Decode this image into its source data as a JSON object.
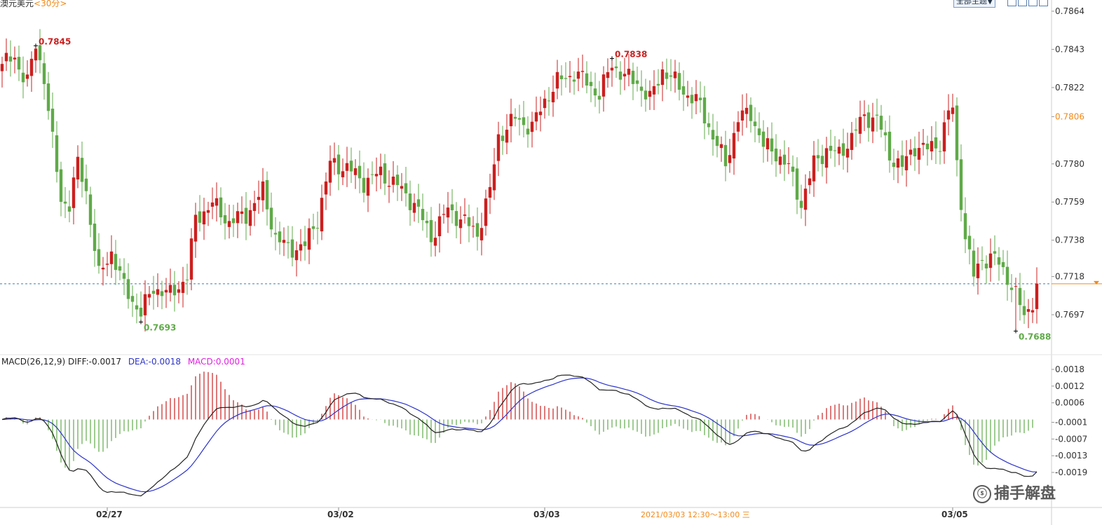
{
  "header": {
    "symbol": "澳元美元",
    "timeframe": "<30分>",
    "theme_button": "全部主题▼"
  },
  "colors": {
    "up": "#cc1f1f",
    "down": "#5faa48",
    "diff_line": "#222222",
    "dea_line": "#2c33c8",
    "macd_legend": "#e020e0",
    "current_price_line": "#3a7fb0",
    "current_price_tag": "#f08a1a"
  },
  "chart_data": [
    {
      "type": "candlestick",
      "y_ticks": [
        "0.7864",
        "0.7843",
        "0.7822",
        "0.7806",
        "0.7780",
        "0.7759",
        "0.7738",
        "0.7718",
        "0.7697"
      ],
      "highlight_tick": "0.7806",
      "ylim": [
        0.7675,
        0.7864
      ],
      "current_price": 0.7714,
      "annotations": [
        {
          "label": "0.7845",
          "price": 0.7845,
          "index": 8,
          "kind": "high"
        },
        {
          "label": "0.7693",
          "price": 0.7693,
          "index": 33,
          "kind": "low"
        },
        {
          "label": "0.7838",
          "price": 0.7838,
          "index": 145,
          "kind": "high"
        },
        {
          "label": "0.7688",
          "price": 0.7688,
          "index": 241,
          "kind": "low"
        }
      ],
      "x_ticks": [
        {
          "label": "02/27",
          "index": 25
        },
        {
          "label": "03/02",
          "index": 80
        },
        {
          "label": "03/03",
          "index": 129
        },
        {
          "label": "03/05",
          "index": 226
        }
      ],
      "cursor_time": "2021/03/03 12:30～13:00 三",
      "anchors": [
        [
          0,
          0.7835
        ],
        [
          3,
          0.7838
        ],
        [
          6,
          0.7825
        ],
        [
          8,
          0.7845
        ],
        [
          10,
          0.7828
        ],
        [
          12,
          0.7792
        ],
        [
          14,
          0.776
        ],
        [
          16,
          0.7758
        ],
        [
          18,
          0.778
        ],
        [
          20,
          0.7765
        ],
        [
          23,
          0.7718
        ],
        [
          26,
          0.7732
        ],
        [
          29,
          0.7712
        ],
        [
          33,
          0.7698
        ],
        [
          36,
          0.7712
        ],
        [
          40,
          0.7708
        ],
        [
          44,
          0.7718
        ],
        [
          46,
          0.775
        ],
        [
          50,
          0.7758
        ],
        [
          54,
          0.7748
        ],
        [
          58,
          0.7752
        ],
        [
          62,
          0.7765
        ],
        [
          65,
          0.774
        ],
        [
          68,
          0.7733
        ],
        [
          72,
          0.7735
        ],
        [
          75,
          0.775
        ],
        [
          78,
          0.778
        ],
        [
          82,
          0.7778
        ],
        [
          86,
          0.777
        ],
        [
          90,
          0.7775
        ],
        [
          94,
          0.7768
        ],
        [
          98,
          0.7758
        ],
        [
          102,
          0.774
        ],
        [
          106,
          0.7755
        ],
        [
          110,
          0.7748
        ],
        [
          113,
          0.7742
        ],
        [
          116,
          0.7765
        ],
        [
          118,
          0.7795
        ],
        [
          122,
          0.7805
        ],
        [
          126,
          0.78
        ],
        [
          129,
          0.7815
        ],
        [
          132,
          0.7825
        ],
        [
          136,
          0.783
        ],
        [
          139,
          0.7825
        ],
        [
          142,
          0.7818
        ],
        [
          145,
          0.7835
        ],
        [
          148,
          0.7828
        ],
        [
          151,
          0.7825
        ],
        [
          154,
          0.7815
        ],
        [
          157,
          0.7832
        ],
        [
          160,
          0.7825
        ],
        [
          163,
          0.7818
        ],
        [
          166,
          0.7812
        ],
        [
          169,
          0.7795
        ],
        [
          172,
          0.778
        ],
        [
          175,
          0.7805
        ],
        [
          178,
          0.7808
        ],
        [
          181,
          0.779
        ],
        [
          184,
          0.7786
        ],
        [
          187,
          0.7778
        ],
        [
          190,
          0.7758
        ],
        [
          193,
          0.778
        ],
        [
          196,
          0.7788
        ],
        [
          199,
          0.7785
        ],
        [
          202,
          0.7795
        ],
        [
          205,
          0.7806
        ],
        [
          208,
          0.7805
        ],
        [
          211,
          0.7785
        ],
        [
          214,
          0.7778
        ],
        [
          217,
          0.779
        ],
        [
          220,
          0.7788
        ],
        [
          223,
          0.7792
        ],
        [
          225,
          0.7808
        ],
        [
          226,
          0.781
        ],
        [
          227,
          0.778
        ],
        [
          229,
          0.774
        ],
        [
          231,
          0.7718
        ],
        [
          233,
          0.7728
        ],
        [
          236,
          0.7728
        ],
        [
          239,
          0.7718
        ],
        [
          241,
          0.7708
        ],
        [
          243,
          0.7696
        ],
        [
          245,
          0.7705
        ],
        [
          246,
          0.7712
        ]
      ],
      "candle_count": 247
    },
    {
      "type": "macd",
      "legend": {
        "name": "MACD(26,12,9)",
        "diff": "DIFF:-0.0017",
        "dea": "DEA:-0.0018",
        "macd": "MACD:0.0001"
      },
      "y_ticks": [
        "0.0018",
        "0.0012",
        "0.0006",
        "-0.0001",
        "-0.0007",
        "-0.0013",
        "-0.0019"
      ],
      "ylim": [
        -0.0031,
        0.0019
      ]
    }
  ],
  "watermark": {
    "text": "捕手解盘"
  }
}
